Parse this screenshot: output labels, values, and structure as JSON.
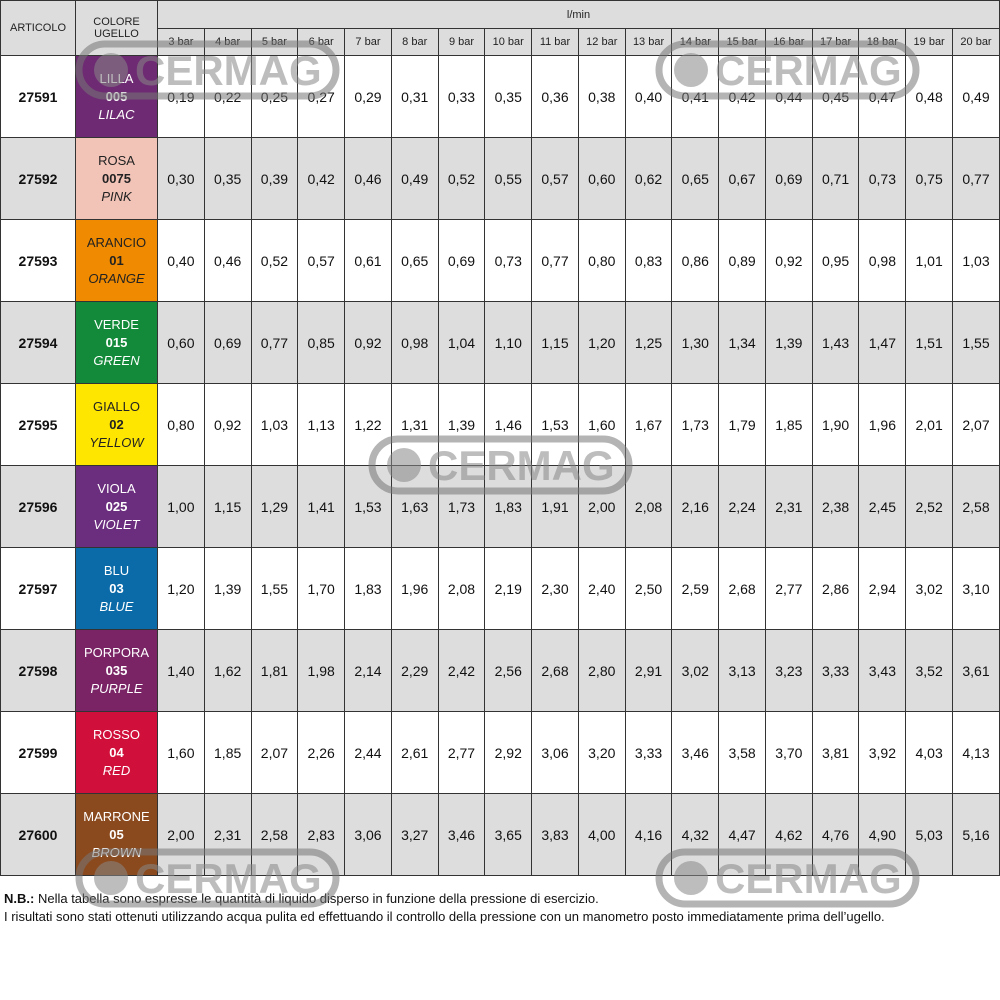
{
  "header": {
    "articolo": "ARTICOLO",
    "colore": "COLORE UGELLO",
    "unit": "l/min",
    "pressures": [
      "3 bar",
      "4 bar",
      "5 bar",
      "6 bar",
      "7 bar",
      "8 bar",
      "9 bar",
      "10 bar",
      "11 bar",
      "12 bar",
      "13 bar",
      "14 bar",
      "15 bar",
      "16 bar",
      "17 bar",
      "18 bar",
      "19 bar",
      "20 bar"
    ]
  },
  "rows": [
    {
      "article": "27591",
      "it": "LILLA",
      "code": "005",
      "en": "LILAC",
      "color": "#6e2a72",
      "values": [
        "0,19",
        "0,22",
        "0,25",
        "0,27",
        "0,29",
        "0,31",
        "0,33",
        "0,35",
        "0,36",
        "0,38",
        "0,40",
        "0,41",
        "0,42",
        "0,44",
        "0,45",
        "0,47",
        "0,48",
        "0,49"
      ]
    },
    {
      "article": "27592",
      "it": "ROSA",
      "code": "0075",
      "en": "PINK",
      "color": "#f2c4b8",
      "values": [
        "0,30",
        "0,35",
        "0,39",
        "0,42",
        "0,46",
        "0,49",
        "0,52",
        "0,55",
        "0,57",
        "0,60",
        "0,62",
        "0,65",
        "0,67",
        "0,69",
        "0,71",
        "0,73",
        "0,75",
        "0,77"
      ]
    },
    {
      "article": "27593",
      "it": "ARANCIO",
      "code": "01",
      "en": "ORANGE",
      "color": "#f08a00",
      "values": [
        "0,40",
        "0,46",
        "0,52",
        "0,57",
        "0,61",
        "0,65",
        "0,69",
        "0,73",
        "0,77",
        "0,80",
        "0,83",
        "0,86",
        "0,89",
        "0,92",
        "0,95",
        "0,98",
        "1,01",
        "1,03"
      ]
    },
    {
      "article": "27594",
      "it": "VERDE",
      "code": "015",
      "en": "GREEN",
      "color": "#138a3a",
      "values": [
        "0,60",
        "0,69",
        "0,77",
        "0,85",
        "0,92",
        "0,98",
        "1,04",
        "1,10",
        "1,15",
        "1,20",
        "1,25",
        "1,30",
        "1,34",
        "1,39",
        "1,43",
        "1,47",
        "1,51",
        "1,55"
      ]
    },
    {
      "article": "27595",
      "it": "GIALLO",
      "code": "02",
      "en": "YELLOW",
      "color": "#ffe600",
      "values": [
        "0,80",
        "0,92",
        "1,03",
        "1,13",
        "1,22",
        "1,31",
        "1,39",
        "1,46",
        "1,53",
        "1,60",
        "1,67",
        "1,73",
        "1,79",
        "1,85",
        "1,90",
        "1,96",
        "2,01",
        "2,07"
      ]
    },
    {
      "article": "27596",
      "it": "VIOLA",
      "code": "025",
      "en": "VIOLET",
      "color": "#6b2d7e",
      "values": [
        "1,00",
        "1,15",
        "1,29",
        "1,41",
        "1,53",
        "1,63",
        "1,73",
        "1,83",
        "1,91",
        "2,00",
        "2,08",
        "2,16",
        "2,24",
        "2,31",
        "2,38",
        "2,45",
        "2,52",
        "2,58"
      ]
    },
    {
      "article": "27597",
      "it": "BLU",
      "code": "03",
      "en": "BLUE",
      "color": "#0b6aa8",
      "values": [
        "1,20",
        "1,39",
        "1,55",
        "1,70",
        "1,83",
        "1,96",
        "2,08",
        "2,19",
        "2,30",
        "2,40",
        "2,50",
        "2,59",
        "2,68",
        "2,77",
        "2,86",
        "2,94",
        "3,02",
        "3,10"
      ]
    },
    {
      "article": "27598",
      "it": "PORPORA",
      "code": "035",
      "en": "PURPLE",
      "color": "#7a2466",
      "values": [
        "1,40",
        "1,62",
        "1,81",
        "1,98",
        "2,14",
        "2,29",
        "2,42",
        "2,56",
        "2,68",
        "2,80",
        "2,91",
        "3,02",
        "3,13",
        "3,23",
        "3,33",
        "3,43",
        "3,52",
        "3,61"
      ]
    },
    {
      "article": "27599",
      "it": "ROSSO",
      "code": "04",
      "en": "RED",
      "color": "#d0103a",
      "values": [
        "1,60",
        "1,85",
        "2,07",
        "2,26",
        "2,44",
        "2,61",
        "2,77",
        "2,92",
        "3,06",
        "3,20",
        "3,33",
        "3,46",
        "3,58",
        "3,70",
        "3,81",
        "3,92",
        "4,03",
        "4,13"
      ]
    },
    {
      "article": "27600",
      "it": "MARRONE",
      "code": "05",
      "en": "BROWN",
      "color": "#8b4a1e",
      "values": [
        "2,00",
        "2,31",
        "2,58",
        "2,83",
        "3,06",
        "3,27",
        "3,46",
        "3,65",
        "3,83",
        "4,00",
        "4,16",
        "4,32",
        "4,47",
        "4,62",
        "4,76",
        "4,90",
        "5,03",
        "5,16"
      ]
    }
  ],
  "notes": {
    "nb_label": "N.B.:",
    "nb_text": " Nella tabella sono espresse le quantità di liquido disperso in funzione della pressione di esercizio.",
    "line2": "I risultati sono stati ottenuti utilizzando acqua pulita ed effettuando il controllo della pressione con un manometro posto immediatamente prima dell’ugello."
  },
  "watermark": "CERMAG"
}
